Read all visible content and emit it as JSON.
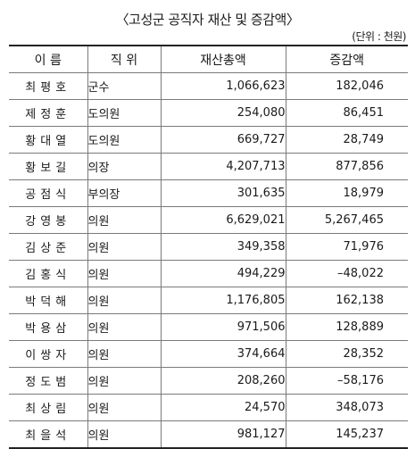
{
  "title": "〈고성군 공직자 재산 및 증감액〉",
  "unit": "(단위 : 천원)",
  "headers": {
    "name": "이 름",
    "position": "직 위",
    "assets": "재산총액",
    "change": "증감액"
  },
  "rows": [
    {
      "name": "최평호",
      "position": "군수",
      "assets": "1,066,623",
      "change": "182,046"
    },
    {
      "name": "제정훈",
      "position": "도의원",
      "assets": "254,080",
      "change": "86,451"
    },
    {
      "name": "황대열",
      "position": "도의원",
      "assets": "669,727",
      "change": "28,749"
    },
    {
      "name": "황보길",
      "position": "의장",
      "assets": "4,207,713",
      "change": "877,856"
    },
    {
      "name": "공점식",
      "position": "부의장",
      "assets": "301,635",
      "change": "18,979"
    },
    {
      "name": "강영봉",
      "position": "의원",
      "assets": "6,629,021",
      "change": "5,267,465"
    },
    {
      "name": "김상준",
      "position": "의원",
      "assets": "349,358",
      "change": "71,976"
    },
    {
      "name": "김홍식",
      "position": "의원",
      "assets": "494,229",
      "change": "–48,022"
    },
    {
      "name": "박덕해",
      "position": "의원",
      "assets": "1,176,805",
      "change": "162,138"
    },
    {
      "name": "박용삼",
      "position": "의원",
      "assets": "971,506",
      "change": "128,889"
    },
    {
      "name": "이쌍자",
      "position": "의원",
      "assets": "374,664",
      "change": "28,352"
    },
    {
      "name": "정도범",
      "position": "의원",
      "assets": "208,260",
      "change": "–58,176"
    },
    {
      "name": "최상림",
      "position": "의원",
      "assets": "24,570",
      "change": "348,073"
    },
    {
      "name": "최을석",
      "position": "의원",
      "assets": "981,127",
      "change": "145,237"
    }
  ]
}
